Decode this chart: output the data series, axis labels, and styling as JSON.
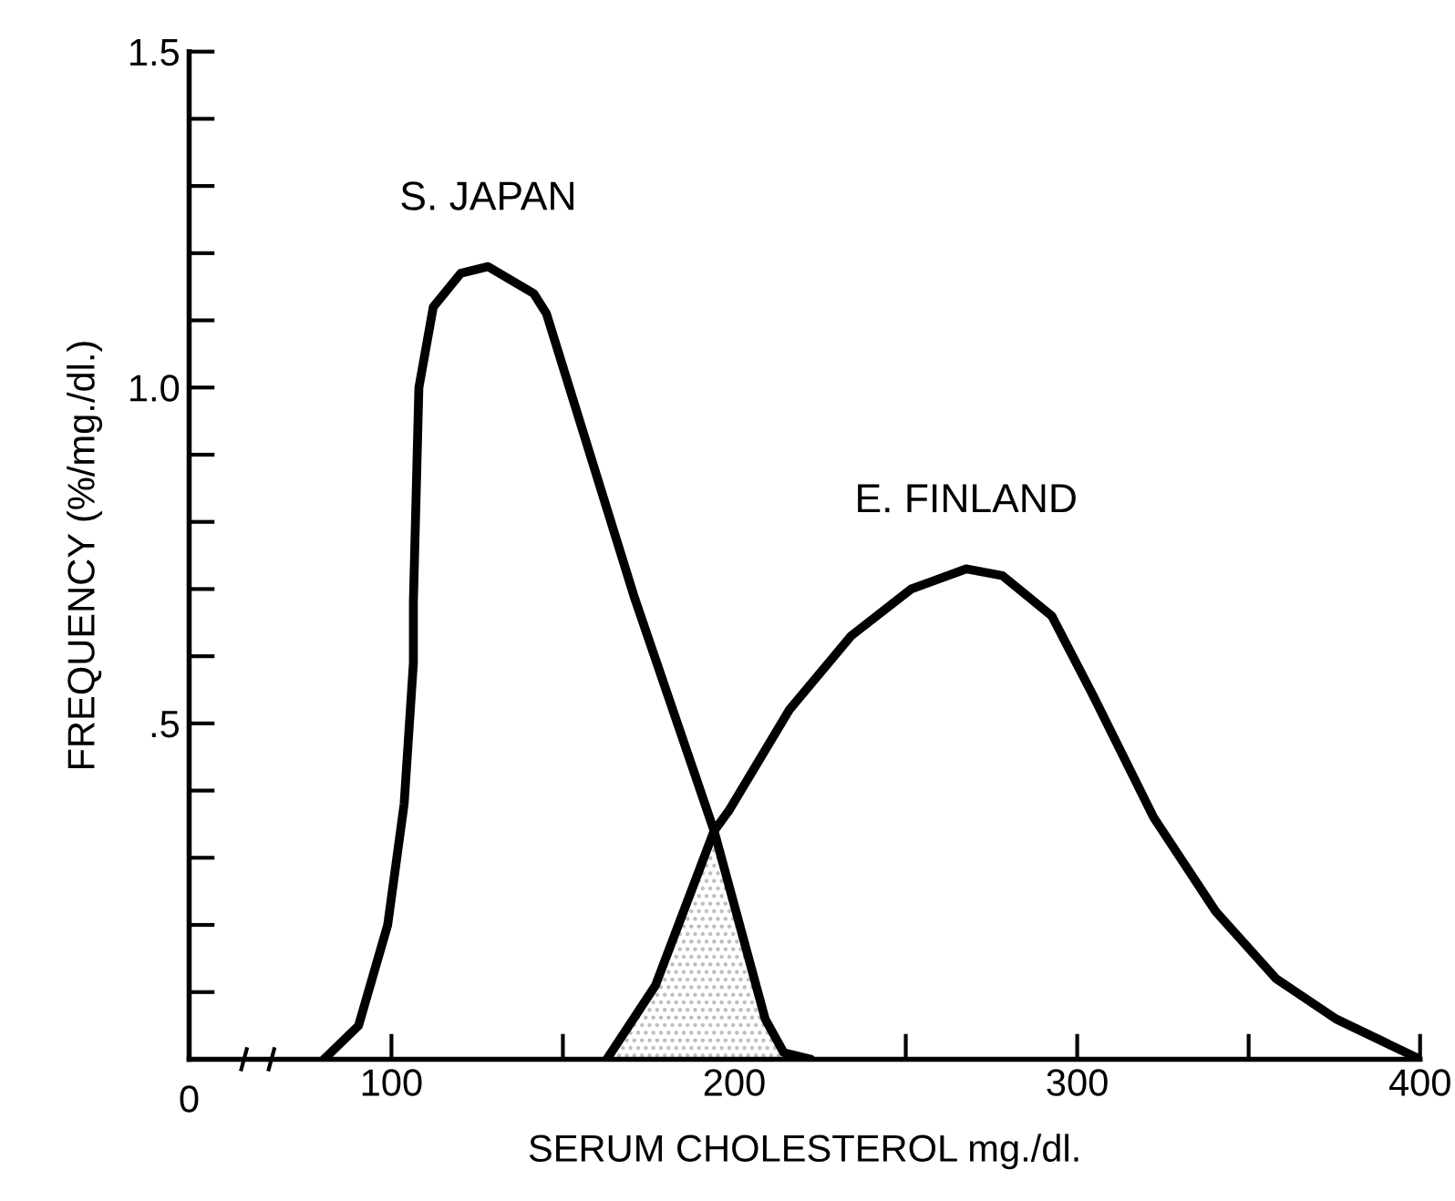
{
  "chart_data": {
    "type": "line",
    "xlabel": "SERUM CHOLESTEROL mg./dl.",
    "ylabel": "FREQUENCY (%/mg./dl.)",
    "xlim": [
      41,
      400
    ],
    "ylim": [
      0,
      1.5
    ],
    "xticks": [
      100,
      {
        "value": 150,
        "label": null
      },
      200,
      {
        "value": 250,
        "label": null
      },
      300,
      {
        "value": 350,
        "label": null
      },
      400
    ],
    "yticks": [
      {
        "value": 0.1,
        "label": null
      },
      {
        "value": 0.2,
        "label": null
      },
      {
        "value": 0.3,
        "label": null
      },
      {
        "value": 0.4,
        "label": null
      },
      {
        "value": 0.5,
        "label": ".5"
      },
      {
        "value": 0.6,
        "label": null
      },
      {
        "value": 0.7,
        "label": null
      },
      {
        "value": 0.8,
        "label": null
      },
      {
        "value": 0.9,
        "label": null
      },
      {
        "value": 1.0,
        "label": "1.0"
      },
      {
        "value": 1.1,
        "label": null
      },
      {
        "value": 1.2,
        "label": null
      },
      {
        "value": 1.3,
        "label": null
      },
      {
        "value": 1.4,
        "label": null
      },
      {
        "value": 1.5,
        "label": "1.5"
      }
    ],
    "grid": false,
    "legend": false,
    "marker": "none",
    "line_style": "solid",
    "series": [
      {
        "type": "area",
        "color": "#bdbdbd",
        "x": [
          162.8,
          177,
          194.1,
          209,
          214.4,
          222.3
        ],
        "values": [
          0,
          0.11,
          0.34,
          0.06,
          0.01,
          0
        ]
      },
      {
        "name": "S. JAPAN",
        "color": "#000000",
        "x": [
          80.3,
          90.4,
          98.9,
          103.7,
          106.4,
          106.4,
          108,
          112.2,
          120.2,
          128.2,
          141.5,
          145.2,
          170.7,
          194.1,
          209,
          214.4,
          222.3
        ],
        "values": [
          0,
          0.05,
          0.2,
          0.38,
          0.59,
          0.68,
          1.0,
          1.12,
          1.17,
          1.18,
          1.14,
          1.11,
          0.69,
          0.34,
          0.06,
          0.01,
          0
        ]
      },
      {
        "name": "E. FINLAND",
        "color": "#000000",
        "x": [
          162.8,
          177,
          194.1,
          198.4,
          216,
          234,
          251.6,
          267.6,
          278.2,
          292.6,
          304.8,
          322.3,
          340.4,
          358,
          375.5,
          400
        ],
        "values": [
          0,
          0.11,
          0.34,
          0.37,
          0.52,
          0.63,
          0.7,
          0.73,
          0.72,
          0.66,
          0.54,
          0.36,
          0.22,
          0.12,
          0.06,
          0
        ]
      }
    ],
    "annotations": [
      "0"
    ]
  }
}
